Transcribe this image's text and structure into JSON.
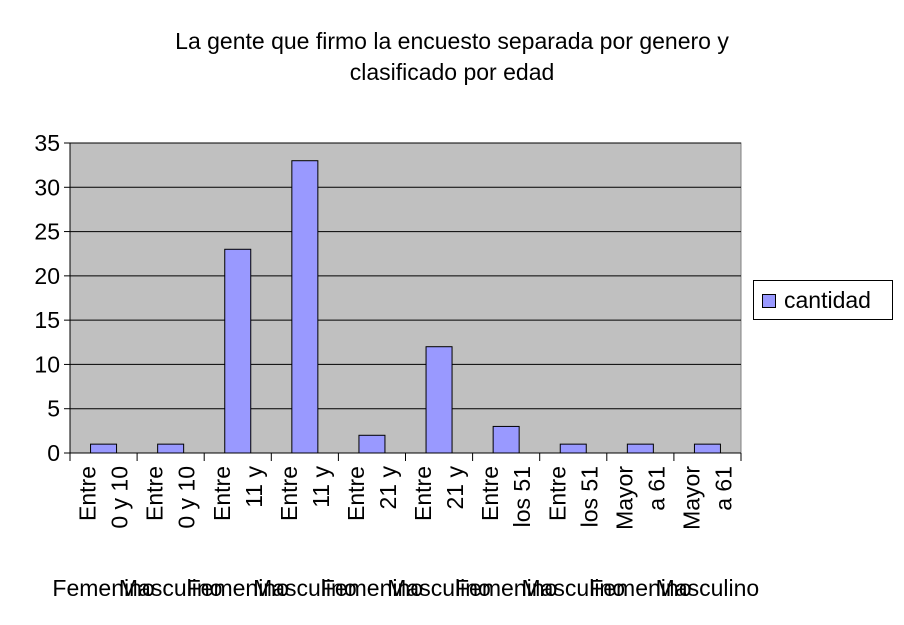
{
  "chart_data": {
    "type": "bar",
    "title": [
      "La gente que firmo la encuesto separada por genero y",
      "clasificado por edad"
    ],
    "categories": [
      [
        "Entre",
        "0 y 10"
      ],
      [
        "Entre",
        "0 y 10"
      ],
      [
        "Entre",
        "11 y"
      ],
      [
        "Entre",
        "11 y"
      ],
      [
        "Entre",
        "21 y"
      ],
      [
        "Entre",
        "21 y"
      ],
      [
        "Entre",
        "los 51"
      ],
      [
        "Entre",
        "los 51"
      ],
      [
        "Mayor",
        "a 61"
      ],
      [
        "Mayor",
        "a 61"
      ]
    ],
    "groups": [
      "Femenino",
      "Masculino",
      "Femenino",
      "Masculino",
      "Femenino",
      "Masculino",
      "Femenino",
      "Masculino",
      "Femenino",
      "Masculino"
    ],
    "series": [
      {
        "name": "cantidad",
        "values": [
          1,
          1,
          23,
          33,
          2,
          12,
          3,
          1,
          1,
          1
        ]
      }
    ],
    "ylim": [
      0,
      35
    ],
    "yticks": [
      "0",
      "5",
      "10",
      "15",
      "20",
      "25",
      "30",
      "35"
    ],
    "grid": true,
    "legend_position": "right",
    "colors": {
      "plot_bg": "#c0c0c0",
      "bar": "#9999ff",
      "grid": "#000000"
    }
  }
}
